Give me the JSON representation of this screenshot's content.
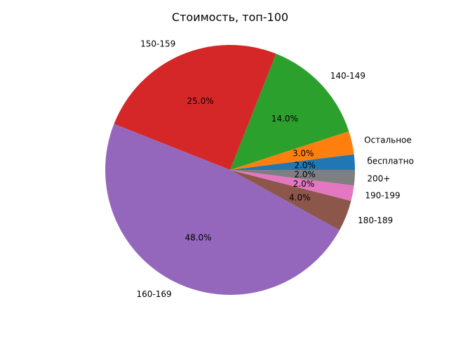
{
  "chart_data": {
    "type": "pie",
    "title": "Стоимость, топ-100",
    "slices": [
      {
        "label": "бесплатно",
        "value": 2.0,
        "pct_label": "2.0%",
        "color": "#1f77b4"
      },
      {
        "label": "Остальное",
        "value": 3.0,
        "pct_label": "3.0%",
        "color": "#ff7f0e"
      },
      {
        "label": "140-149",
        "value": 14.0,
        "pct_label": "14.0%",
        "color": "#2ca02c"
      },
      {
        "label": "150-159",
        "value": 25.0,
        "pct_label": "25.0%",
        "color": "#d62728"
      },
      {
        "label": "160-169",
        "value": 48.0,
        "pct_label": "48.0%",
        "color": "#9467bd"
      },
      {
        "label": "180-189",
        "value": 4.0,
        "pct_label": "4.0%",
        "color": "#8c564b"
      },
      {
        "label": "190-199",
        "value": 2.0,
        "pct_label": "2.0%",
        "color": "#e377c2"
      },
      {
        "label": "200+",
        "value": 2.0,
        "pct_label": "2.0%",
        "color": "#7f7f7f"
      }
    ]
  }
}
